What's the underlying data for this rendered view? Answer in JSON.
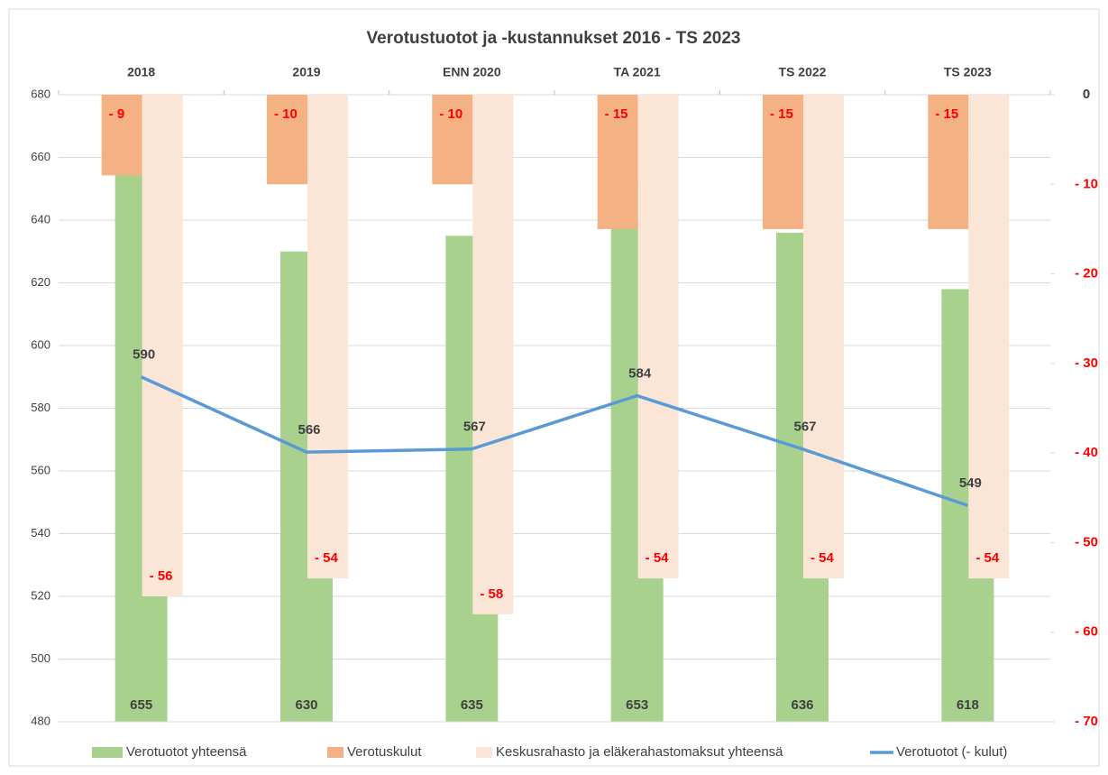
{
  "chart_data": {
    "type": "combo",
    "title": "Verotustuotot ja  -kustannukset 2016 - TS 2023",
    "categories": [
      "2018",
      "2019",
      "ENN  2020",
      "TA 2021",
      "TS 2022",
      "TS 2023"
    ],
    "ylim": [
      480,
      680
    ],
    "yticks": [
      480,
      500,
      520,
      540,
      560,
      580,
      600,
      620,
      640,
      660,
      680
    ],
    "y2lim": [
      -70,
      0
    ],
    "y2ticks": [
      0,
      {
        "value": -10,
        "label": "- 10"
      },
      {
        "value": -20,
        "label": "- 20"
      },
      {
        "value": -30,
        "label": "- 30"
      },
      {
        "value": -40,
        "label": "- 40"
      },
      {
        "value": -50,
        "label": "- 50"
      },
      {
        "value": -60,
        "label": "- 60"
      },
      {
        "value": -70,
        "label": "- 70"
      }
    ],
    "grid": true,
    "series": [
      {
        "name": "Verotuotot yhteensä",
        "kind": "bar",
        "color": "#a9d18e",
        "values": [
          655,
          630,
          635,
          653,
          636,
          618
        ]
      },
      {
        "name": "Verotuskulut",
        "kind": "bar",
        "axis": "y2",
        "color": "#f4b183",
        "values": [
          -9,
          -10,
          -10,
          -15,
          -15,
          -15
        ],
        "value_labels": [
          "- 9",
          "- 10",
          "- 10",
          "- 15",
          "- 15",
          "- 15"
        ]
      },
      {
        "name": "Keskusrahasto ja eläkerahastomaksut yhteensä",
        "kind": "bar",
        "axis": "y2",
        "color": "#fbe5d6",
        "values": [
          -56,
          -54,
          -58,
          -54,
          -54,
          -54
        ],
        "value_labels": [
          "- 56",
          "- 54",
          "- 58",
          "- 54",
          "- 54",
          "- 54"
        ]
      },
      {
        "name": "Verotuotot  (- kulut)",
        "kind": "line",
        "color": "#5b9bd5",
        "values": [
          590,
          566,
          567,
          584,
          567,
          549
        ]
      }
    ]
  }
}
